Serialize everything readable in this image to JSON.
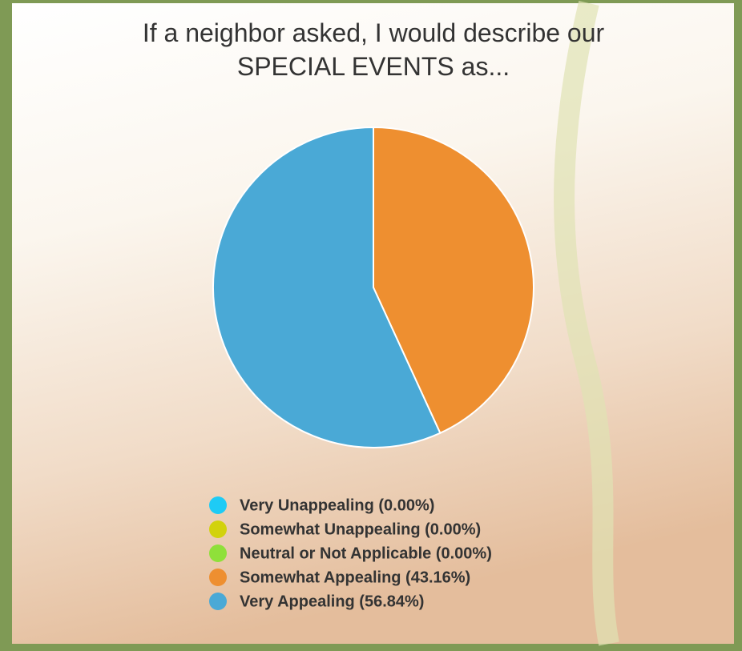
{
  "chart_data": {
    "type": "pie",
    "title": [
      "If a neighbor asked, I would describe our",
      "SPECIAL EVENTS as..."
    ],
    "categories": [
      "Very Unappealing (0.00%)",
      "Somewhat Unappealing (0.00%)",
      "Neutral or Not Applicable (0.00%)",
      "Somewhat Appealing (43.16%)",
      "Very Appealing (56.84%)"
    ],
    "values": [
      0,
      0,
      0,
      43.16,
      56.84
    ],
    "colors": [
      "#1ecbf5",
      "#d2d20c",
      "#8fe03a",
      "#ee8f30",
      "#4aa9d6"
    ],
    "legend": "bottom"
  }
}
